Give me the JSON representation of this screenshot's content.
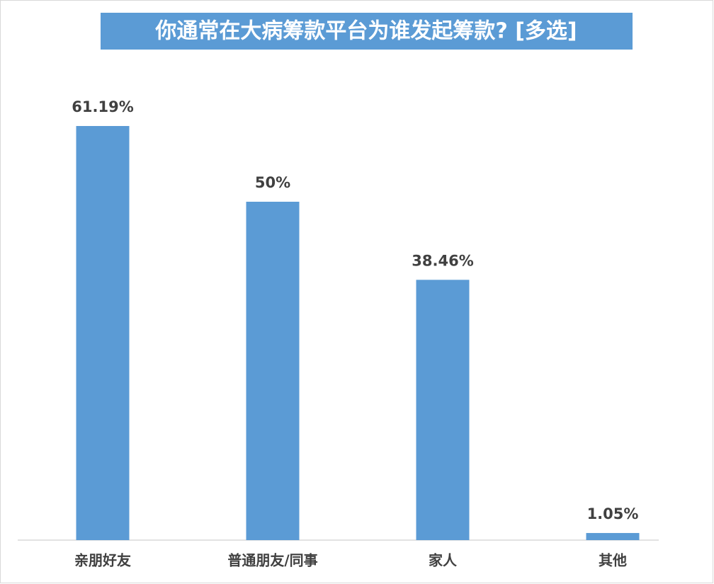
{
  "chart_data": {
    "type": "bar",
    "title": "你通常在大病筹款平台为谁发起筹款? [多选]",
    "categories": [
      "亲朋好友",
      "普通朋友/同事",
      "家人",
      "其他"
    ],
    "values": [
      61.19,
      50,
      38.46,
      1.05
    ],
    "value_labels": [
      "61.19%",
      "50%",
      "38.46%",
      "1.05%"
    ],
    "color": "#5b9bd5"
  }
}
